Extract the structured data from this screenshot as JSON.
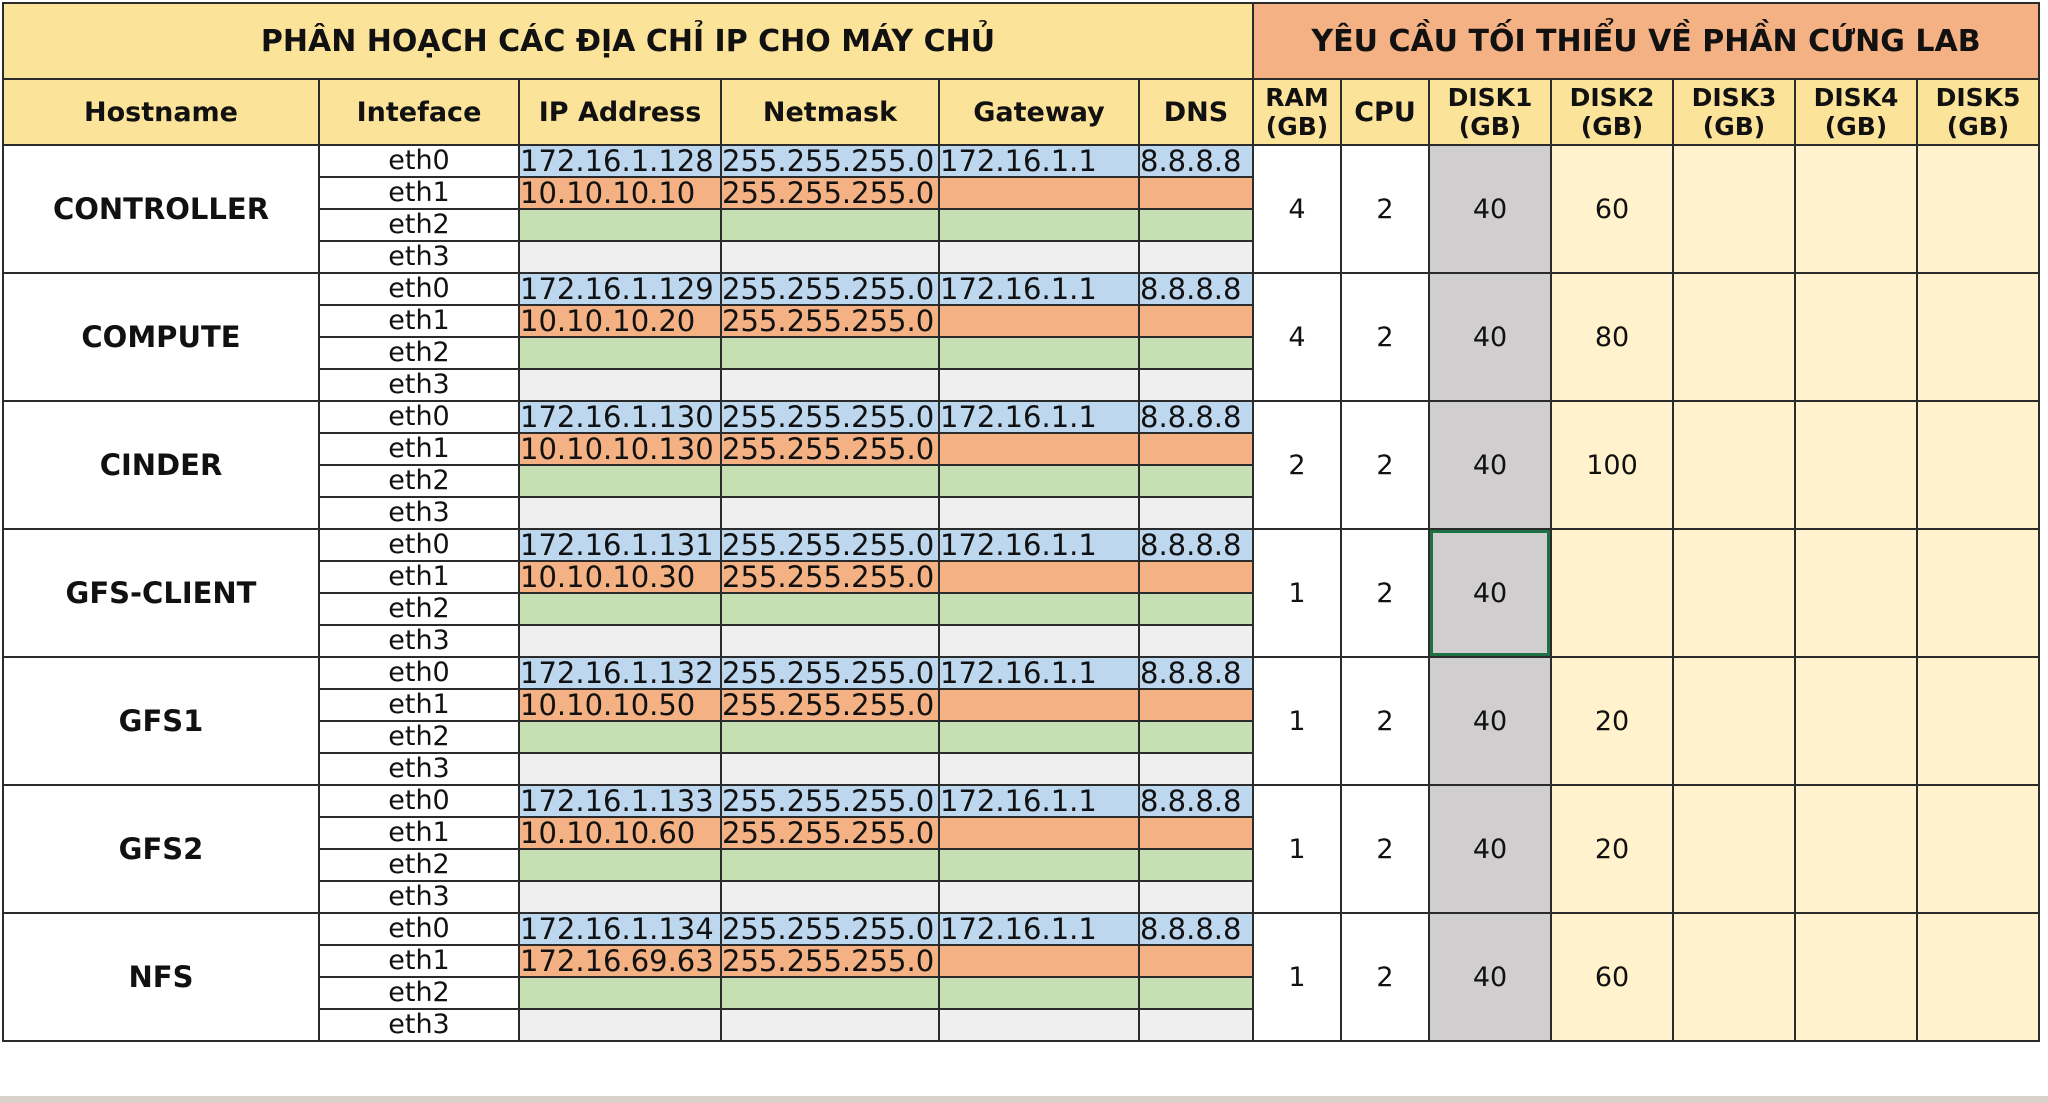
{
  "titles": {
    "ip_plan": "PHÂN HOẠCH CÁC ĐỊA CHỈ IP CHO MÁY CHỦ",
    "hw_req": "YÊU CẦU TỐI THIỂU VỀ PHẦN CỨNG LAB"
  },
  "headers": {
    "hostname": "Hostname",
    "interface": "Inteface",
    "ip": "IP Address",
    "netmask": "Netmask",
    "gateway": "Gateway",
    "dns": "DNS",
    "ram": [
      "RAM",
      "(GB)"
    ],
    "cpu": "CPU",
    "disk1": [
      "DISK1",
      "(GB)"
    ],
    "disk2": [
      "DISK2",
      "(GB)"
    ],
    "disk3": [
      "DISK3",
      "(GB)"
    ],
    "disk4": [
      "DISK4",
      "(GB)"
    ],
    "disk5": [
      "DISK5",
      "(GB)"
    ]
  },
  "hosts": [
    {
      "name": "CONTROLLER",
      "interfaces": [
        {
          "iface": "eth0",
          "ip": "172.16.1.128",
          "netmask": "255.255.255.0",
          "gateway": "172.16.1.1",
          "dns": "8.8.8.8"
        },
        {
          "iface": "eth1",
          "ip": "10.10.10.10",
          "netmask": "255.255.255.0",
          "gateway": "",
          "dns": ""
        },
        {
          "iface": "eth2",
          "ip": "",
          "netmask": "",
          "gateway": "",
          "dns": ""
        },
        {
          "iface": "eth3",
          "ip": "",
          "netmask": "",
          "gateway": "",
          "dns": ""
        }
      ],
      "ram": "4",
      "cpu": "2",
      "disk1": "40",
      "disk2": "60",
      "disk3": "",
      "disk4": "",
      "disk5": ""
    },
    {
      "name": "COMPUTE",
      "interfaces": [
        {
          "iface": "eth0",
          "ip": "172.16.1.129",
          "netmask": "255.255.255.0",
          "gateway": "172.16.1.1",
          "dns": "8.8.8.8"
        },
        {
          "iface": "eth1",
          "ip": "10.10.10.20",
          "netmask": "255.255.255.0",
          "gateway": "",
          "dns": ""
        },
        {
          "iface": "eth2",
          "ip": "",
          "netmask": "",
          "gateway": "",
          "dns": ""
        },
        {
          "iface": "eth3",
          "ip": "",
          "netmask": "",
          "gateway": "",
          "dns": ""
        }
      ],
      "ram": "4",
      "cpu": "2",
      "disk1": "40",
      "disk2": "80",
      "disk3": "",
      "disk4": "",
      "disk5": ""
    },
    {
      "name": "CINDER",
      "interfaces": [
        {
          "iface": "eth0",
          "ip": "172.16.1.130",
          "netmask": "255.255.255.0",
          "gateway": "172.16.1.1",
          "dns": "8.8.8.8"
        },
        {
          "iface": "eth1",
          "ip": "10.10.10.130",
          "netmask": "255.255.255.0",
          "gateway": "",
          "dns": ""
        },
        {
          "iface": "eth2",
          "ip": "",
          "netmask": "",
          "gateway": "",
          "dns": ""
        },
        {
          "iface": "eth3",
          "ip": "",
          "netmask": "",
          "gateway": "",
          "dns": ""
        }
      ],
      "ram": "2",
      "cpu": "2",
      "disk1": "40",
      "disk2": "100",
      "disk3": "",
      "disk4": "",
      "disk5": ""
    },
    {
      "name": "GFS-CLIENT",
      "interfaces": [
        {
          "iface": "eth0",
          "ip": "172.16.1.131",
          "netmask": "255.255.255.0",
          "gateway": "172.16.1.1",
          "dns": "8.8.8.8"
        },
        {
          "iface": "eth1",
          "ip": "10.10.10.30",
          "netmask": "255.255.255.0",
          "gateway": "",
          "dns": ""
        },
        {
          "iface": "eth2",
          "ip": "",
          "netmask": "",
          "gateway": "",
          "dns": ""
        },
        {
          "iface": "eth3",
          "ip": "",
          "netmask": "",
          "gateway": "",
          "dns": ""
        }
      ],
      "ram": "1",
      "cpu": "2",
      "disk1": "40",
      "disk2": "",
      "disk3": "",
      "disk4": "",
      "disk5": "",
      "selected": true
    },
    {
      "name": "GFS1",
      "interfaces": [
        {
          "iface": "eth0",
          "ip": "172.16.1.132",
          "netmask": "255.255.255.0",
          "gateway": "172.16.1.1",
          "dns": "8.8.8.8"
        },
        {
          "iface": "eth1",
          "ip": "10.10.10.50",
          "netmask": "255.255.255.0",
          "gateway": "",
          "dns": ""
        },
        {
          "iface": "eth2",
          "ip": "",
          "netmask": "",
          "gateway": "",
          "dns": ""
        },
        {
          "iface": "eth3",
          "ip": "",
          "netmask": "",
          "gateway": "",
          "dns": ""
        }
      ],
      "ram": "1",
      "cpu": "2",
      "disk1": "40",
      "disk2": "20",
      "disk3": "",
      "disk4": "",
      "disk5": ""
    },
    {
      "name": "GFS2",
      "interfaces": [
        {
          "iface": "eth0",
          "ip": "172.16.1.133",
          "netmask": "255.255.255.0",
          "gateway": "172.16.1.1",
          "dns": "8.8.8.8"
        },
        {
          "iface": "eth1",
          "ip": "10.10.10.60",
          "netmask": "255.255.255.0",
          "gateway": "",
          "dns": ""
        },
        {
          "iface": "eth2",
          "ip": "",
          "netmask": "",
          "gateway": "",
          "dns": ""
        },
        {
          "iface": "eth3",
          "ip": "",
          "netmask": "",
          "gateway": "",
          "dns": ""
        }
      ],
      "ram": "1",
      "cpu": "2",
      "disk1": "40",
      "disk2": "20",
      "disk3": "",
      "disk4": "",
      "disk5": ""
    },
    {
      "name": "NFS",
      "interfaces": [
        {
          "iface": "eth0",
          "ip": "172.16.1.134",
          "netmask": "255.255.255.0",
          "gateway": "172.16.1.1",
          "dns": "8.8.8.8"
        },
        {
          "iface": "eth1",
          "ip": "172.16.69.63",
          "netmask": "255.255.255.0",
          "gateway": "",
          "dns": ""
        },
        {
          "iface": "eth2",
          "ip": "",
          "netmask": "",
          "gateway": "",
          "dns": ""
        },
        {
          "iface": "eth3",
          "ip": "",
          "netmask": "",
          "gateway": "",
          "dns": ""
        }
      ],
      "ram": "1",
      "cpu": "2",
      "disk1": "40",
      "disk2": "60",
      "disk3": "",
      "disk4": "",
      "disk5": ""
    }
  ],
  "colors": {
    "title_left": "#fbe39a",
    "title_right": "#f4b183",
    "eth0": "#bdd7ee",
    "eth1": "#f4b183",
    "eth2": "#c6e0b4",
    "eth3": "#efefef",
    "disk1": "#d0cece",
    "disk2_5": "#fff2cc",
    "selection": "#1e7145"
  }
}
